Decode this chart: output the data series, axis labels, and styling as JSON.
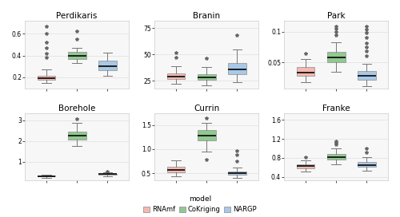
{
  "titles": [
    "Perdikaris",
    "Branin",
    "Park",
    "Borehole",
    "Currin",
    "Franke"
  ],
  "colors": {
    "RNAmf": "#F5B8B0",
    "CoKriging": "#90C890",
    "NARGP": "#A8C8E8"
  },
  "models": [
    "RNAmf",
    "CoKriging",
    "NARGP"
  ],
  "panel_bg": "#F7F7F7",
  "fig_bg": "#FFFFFF",
  "grid_color": "#E0E0E0",
  "perdikaris": {
    "RNAmf": {
      "med": 0.195,
      "q1": 0.178,
      "q3": 0.215,
      "whislo": 0.148,
      "whishi": 0.27,
      "fliers": [
        0.38,
        0.42,
        0.47,
        0.52,
        0.6,
        0.67
      ]
    },
    "CoKriging": {
      "med": 0.4,
      "q1": 0.37,
      "q3": 0.43,
      "whislo": 0.33,
      "whishi": 0.47,
      "fliers": [
        0.55,
        0.62
      ]
    },
    "NARGP": {
      "med": 0.305,
      "q1": 0.265,
      "q3": 0.35,
      "whislo": 0.215,
      "whishi": 0.425,
      "fliers": []
    }
  },
  "branin": {
    "RNAmf": {
      "med": 29.0,
      "q1": 26.5,
      "q3": 32.0,
      "whislo": 22.0,
      "whishi": 39.0,
      "fliers": [
        47.0,
        52.0
      ]
    },
    "CoKriging": {
      "med": 28.5,
      "q1": 26.0,
      "q3": 31.0,
      "whislo": 21.0,
      "whishi": 38.0,
      "fliers": [
        46.0
      ]
    },
    "NARGP": {
      "med": 36.0,
      "q1": 31.0,
      "q3": 42.0,
      "whislo": 24.0,
      "whishi": 55.0,
      "fliers": [
        68.0
      ]
    }
  },
  "park": {
    "RNAmf": {
      "med": 0.034,
      "q1": 0.028,
      "q3": 0.042,
      "whislo": 0.018,
      "whishi": 0.056,
      "fliers": [
        0.065
      ]
    },
    "CoKriging": {
      "med": 0.058,
      "q1": 0.05,
      "q3": 0.067,
      "whislo": 0.035,
      "whishi": 0.083,
      "fliers": [
        0.095,
        0.1,
        0.105,
        0.108
      ]
    },
    "NARGP": {
      "med": 0.028,
      "q1": 0.022,
      "q3": 0.036,
      "whislo": 0.012,
      "whishi": 0.048,
      "fliers": [
        0.06,
        0.068,
        0.075,
        0.082,
        0.09,
        0.098,
        0.104,
        0.108
      ]
    }
  },
  "borehole": {
    "RNAmf": {
      "med": 0.31,
      "q1": 0.285,
      "q3": 0.335,
      "whislo": 0.245,
      "whishi": 0.38,
      "fliers": []
    },
    "CoKriging": {
      "med": 2.25,
      "q1": 2.05,
      "q3": 2.45,
      "whislo": 1.75,
      "whishi": 2.88,
      "fliers": [
        3.05
      ]
    },
    "NARGP": {
      "med": 0.4,
      "q1": 0.365,
      "q3": 0.435,
      "whislo": 0.305,
      "whishi": 0.49,
      "fliers": [
        0.55
      ]
    }
  },
  "currin": {
    "RNAmf": {
      "med": 0.57,
      "q1": 0.52,
      "q3": 0.635,
      "whislo": 0.44,
      "whishi": 0.76,
      "fliers": []
    },
    "CoKriging": {
      "med": 1.28,
      "q1": 1.18,
      "q3": 1.4,
      "whislo": 0.95,
      "whishi": 1.55,
      "fliers": [
        0.78,
        1.65
      ]
    },
    "NARGP": {
      "med": 0.5,
      "q1": 0.47,
      "q3": 0.545,
      "whislo": 0.41,
      "whishi": 0.615,
      "fliers": [
        0.75,
        0.88,
        0.97
      ]
    }
  },
  "franke": {
    "RNAmf": {
      "med": 0.625,
      "q1": 0.585,
      "q3": 0.67,
      "whislo": 0.51,
      "whishi": 0.755,
      "fliers": [
        0.815
      ]
    },
    "CoKriging": {
      "med": 0.815,
      "q1": 0.77,
      "q3": 0.88,
      "whislo": 0.66,
      "whishi": 1.0,
      "fliers": [
        1.08,
        1.12,
        1.16
      ]
    },
    "NARGP": {
      "med": 0.65,
      "q1": 0.61,
      "q3": 0.72,
      "whislo": 0.52,
      "whishi": 0.82,
      "fliers": [
        0.92,
        1.0
      ]
    }
  },
  "ylims": {
    "perdikaris": [
      0.1,
      0.72
    ],
    "branin": [
      18,
      82
    ],
    "park": [
      0.008,
      0.118
    ],
    "borehole": [
      0.1,
      3.35
    ],
    "currin": [
      0.35,
      1.75
    ],
    "franke": [
      0.32,
      1.75
    ]
  },
  "yticks": {
    "perdikaris": [
      0.2,
      0.4,
      0.6
    ],
    "branin": [
      25,
      50,
      75
    ],
    "park": [
      0.05,
      0.1
    ],
    "borehole": [
      1,
      2,
      3
    ],
    "currin": [
      0.5,
      1.0,
      1.5
    ],
    "franke": [
      0.4,
      0.8,
      1.2,
      1.6
    ]
  }
}
